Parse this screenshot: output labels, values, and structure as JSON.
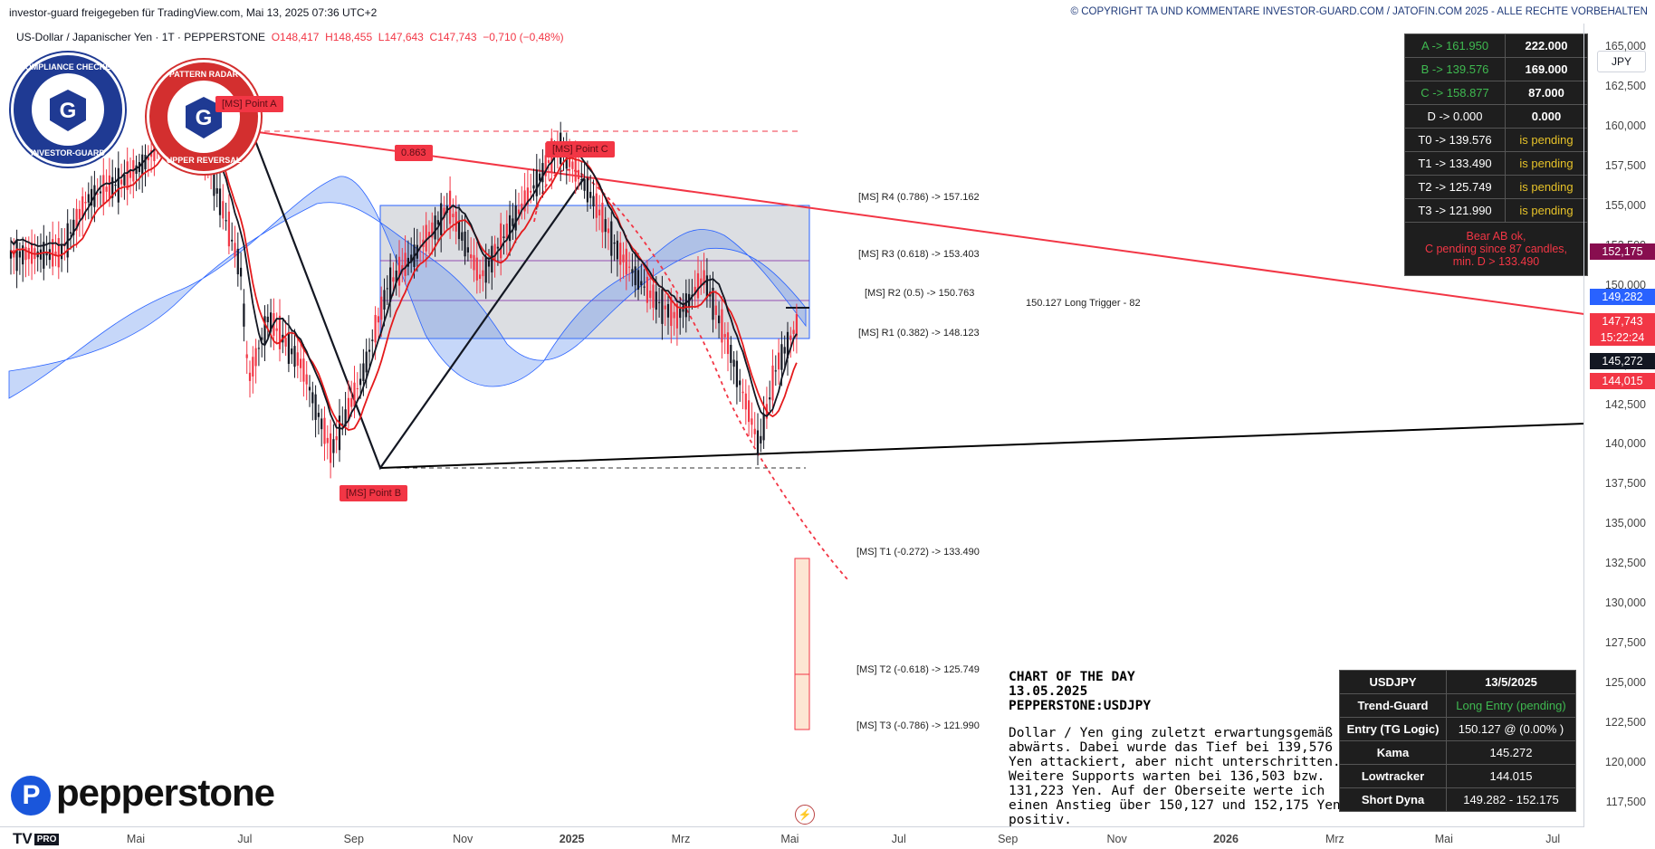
{
  "header": {
    "shared_by": "investor-guard freigegeben für TradingView.com, Mai 13, 2025 07:36 UTC+2",
    "copyright": "© COPYRIGHT TA UND KOMMENTARE INVESTOR-GUARD.COM / JATOFIN.COM 2025 - ALLE RECHTE VORBEHALTEN"
  },
  "symbol": {
    "name": "US-Dollar / Japanischer Yen · 1T · PEPPERSTONE",
    "open": "O148,417",
    "high": "H148,455",
    "low": "L147,643",
    "close": "C147,743",
    "change": "−0,710 (−0,48%)"
  },
  "currency": "JPY",
  "badges": {
    "left_top": "COMPLIANCE CHECKED",
    "left_bottom": "INVESTOR-GUARD",
    "left_letter": "G",
    "right_top": "PATTERN RADAR",
    "right_bottom": "UPPER REVERSAL",
    "right_letter": "G"
  },
  "point_labels": {
    "a": "[MS] Point A",
    "b": "[MS] Point B",
    "c": "[MS] Point C",
    "ratio": "0.863"
  },
  "levels": {
    "r4": "[MS] R4 (0.786) -> 157.162",
    "r3": "[MS] R3 (0.618) -> 153.403",
    "r2": "[MS] R2 (0.5) -> 150.763",
    "r1": "[MS] R1 (0.382) -> 148.123",
    "trigger": "150.127  Long Trigger - 82",
    "t1": "[MS] T1 (-0.272) -> 133.490",
    "t2": "[MS] T2 (-0.618) -> 125.749",
    "t3": "[MS] T3 (-0.786) -> 121.990"
  },
  "pattern_table": {
    "rows": [
      {
        "k": "A -> 161.950",
        "v": "222.000",
        "green": true,
        "gold": false
      },
      {
        "k": "B -> 139.576",
        "v": "169.000",
        "green": true,
        "gold": false
      },
      {
        "k": "C -> 158.877",
        "v": "87.000",
        "green": true,
        "gold": false
      },
      {
        "k": "D -> 0.000",
        "v": "0.000",
        "green": false,
        "gold": false
      },
      {
        "k": "T0 -> 139.576",
        "v": "is pending",
        "green": false,
        "gold": true
      },
      {
        "k": "T1 -> 133.490",
        "v": "is pending",
        "green": false,
        "gold": true
      },
      {
        "k": "T2 -> 125.749",
        "v": "is pending",
        "green": false,
        "gold": true
      },
      {
        "k": "T3 -> 121.990",
        "v": "is pending",
        "green": false,
        "gold": true
      }
    ],
    "note_1": "Bear AB ok,",
    "note_2": "C pending since 87 candles,",
    "note_3": "min. D > 133.490"
  },
  "info_table": {
    "rows": [
      {
        "k": "USDJPY",
        "v": "13/5/2025"
      },
      {
        "k": "Trend-Guard",
        "v": "Long Entry (pending)"
      },
      {
        "k": "Entry (TG Logic)",
        "v": "150.127 @ (0.00% )"
      },
      {
        "k": "Kama",
        "v": "145.272"
      },
      {
        "k": "Lowtracker",
        "v": "144.015"
      },
      {
        "k": "Short Dyna",
        "v": "149.282 - 152.175"
      }
    ]
  },
  "commentary": {
    "title_1": "CHART OF THE DAY",
    "title_2": "13.05.2025",
    "title_3": "PEPPERSTONE:USDJPY",
    "body": "Dollar / Yen ging zuletzt erwartungsgemäß abwärts. Dabei wurde das Tief bei 139,576 Yen attackiert, aber nicht unterschritten. Weitere Supports warten bei 136,503 bzw. 131,223 Yen. Auf der Oberseite werte ich einen Anstieg über 150,127 und 152,175 Yen positiv."
  },
  "price_tags": [
    {
      "value": "152,175",
      "color": "#880e4f"
    },
    {
      "value": "149,282",
      "color": "#2962ff"
    },
    {
      "value": "147,743",
      "color": "#f23645"
    },
    {
      "value": "15:22:24",
      "color": "#f23645"
    },
    {
      "value": "145,272",
      "color": "#131722"
    },
    {
      "value": "144,015",
      "color": "#f23645"
    }
  ],
  "logos": {
    "broker": "pepperstone",
    "platform": "TV",
    "platform_badge": "PRO"
  },
  "chart_data": {
    "type": "line",
    "series": [
      {
        "x": [
          "2024-05-01",
          "2024-05-15",
          "2024-06-01",
          "2024-06-15",
          "2024-07-03",
          "2024-07-15",
          "2024-08-01",
          "2024-08-05",
          "2024-08-15",
          "2024-09-01",
          "2024-09-16",
          "2024-10-01",
          "2024-10-15",
          "2024-11-01",
          "2024-11-15",
          "2024-12-01",
          "2024-12-15",
          "2025-01-10",
          "2025-01-25",
          "2025-02-10",
          "2025-02-25",
          "2025-03-11",
          "2025-03-25",
          "2025-04-07",
          "2025-04-22",
          "2025-05-01",
          "2025-05-12"
        ],
        "values": [
          152.0,
          155.5,
          156.5,
          158.0,
          161.9,
          158.0,
          151.0,
          144.0,
          148.0,
          145.0,
          139.6,
          144.0,
          150.0,
          152.5,
          155.0,
          150.5,
          153.5,
          158.9,
          156.0,
          152.0,
          149.5,
          148.0,
          150.5,
          146.0,
          139.9,
          145.0,
          147.7
        ]
      }
    ],
    "xlabel": "",
    "ylabel": "",
    "x_ticks": [
      "Mai",
      "Jul",
      "Sep",
      "Nov",
      "2025",
      "Mrz",
      "Mai",
      "Jul",
      "Sep",
      "Nov",
      "2026",
      "Mrz",
      "Mai",
      "Jul"
    ],
    "y_ticks": [
      "165,000",
      "162,500",
      "160,000",
      "157,500",
      "155,000",
      "152,500",
      "150,000",
      "147,500",
      "145,000",
      "142,500",
      "140,000",
      "137,500",
      "135,000",
      "132,500",
      "130,000",
      "127,500",
      "125,000",
      "122,500",
      "120,000",
      "117,500"
    ],
    "ylim": [
      116.0,
      166.5
    ],
    "points": {
      "A": 161.95,
      "B": 139.576,
      "C": 158.877
    },
    "horizontal_levels": {
      "R4": 157.162,
      "R3": 153.403,
      "R2": 150.763,
      "R1": 148.123,
      "T1": 133.49,
      "T2": 125.749,
      "T3": 121.99,
      "long_trigger": 150.127,
      "point_a_dashed": 162.2,
      "point_b_dashed": 139.55
    }
  }
}
